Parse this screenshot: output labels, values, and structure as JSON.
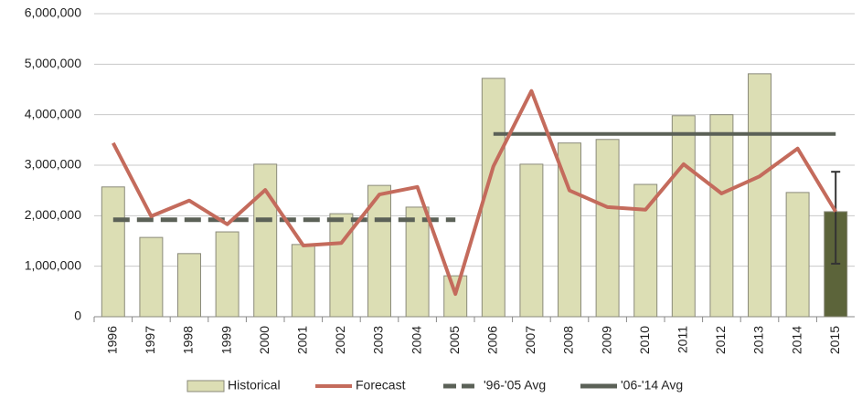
{
  "chart_data": {
    "type": "bar-line",
    "categories": [
      "1996",
      "1997",
      "1998",
      "1999",
      "2000",
      "2001",
      "2002",
      "2003",
      "2004",
      "2005",
      "2006",
      "2007",
      "2008",
      "2009",
      "2010",
      "2011",
      "2012",
      "2013",
      "2014",
      "2015"
    ],
    "series": [
      {
        "name": "Historical",
        "kind": "bar",
        "color": "#dcdeb4",
        "colors": [
          "#dcdeb4",
          "#dcdeb4",
          "#dcdeb4",
          "#dcdeb4",
          "#dcdeb4",
          "#dcdeb4",
          "#dcdeb4",
          "#dcdeb4",
          "#dcdeb4",
          "#dcdeb4",
          "#dcdeb4",
          "#dcdeb4",
          "#dcdeb4",
          "#dcdeb4",
          "#dcdeb4",
          "#dcdeb4",
          "#dcdeb4",
          "#dcdeb4",
          "#dcdeb4",
          "#5c643a"
        ],
        "values": [
          2570000,
          1570000,
          1250000,
          1680000,
          3020000,
          1430000,
          2040000,
          2600000,
          2170000,
          810000,
          4720000,
          3020000,
          3440000,
          3510000,
          2620000,
          3980000,
          4000000,
          4810000,
          2460000,
          2080000
        ],
        "error_bar": {
          "low": 1050000,
          "high": 2870000
        }
      },
      {
        "name": "Forecast",
        "kind": "line",
        "color": "#c46b5c",
        "values": [
          3440000,
          1990000,
          2300000,
          1830000,
          2510000,
          1410000,
          1460000,
          2420000,
          2570000,
          450000,
          2980000,
          4470000,
          2500000,
          2170000,
          2120000,
          3020000,
          2440000,
          2780000,
          3330000,
          2080000
        ]
      },
      {
        "name": "'96-'05 Avg",
        "kind": "dashed",
        "color": "#5b6157",
        "values": [
          1920000,
          1920000,
          1920000,
          1920000,
          1920000,
          1920000,
          1920000,
          1920000,
          1920000,
          1920000,
          null,
          null,
          null,
          null,
          null,
          null,
          null,
          null,
          null,
          null
        ]
      },
      {
        "name": "'06-'14 Avg",
        "kind": "solid",
        "color": "#5b6157",
        "values": [
          null,
          null,
          null,
          null,
          null,
          null,
          null,
          null,
          null,
          null,
          3620000,
          3620000,
          3620000,
          3620000,
          3620000,
          3620000,
          3620000,
          3620000,
          3620000,
          3620000
        ]
      }
    ],
    "ylim": [
      0,
      6000000
    ],
    "yticks": [
      0,
      {
        "value": 1000000,
        "label": "1,000,000"
      },
      {
        "value": 2000000,
        "label": "2,000,000"
      },
      {
        "value": 3000000,
        "label": "3,000,000"
      },
      {
        "value": 4000000,
        "label": "4,000,000"
      },
      {
        "value": 5000000,
        "label": "5,000,000"
      },
      {
        "value": 6000000,
        "label": "6,000,000"
      }
    ],
    "grid": true
  }
}
